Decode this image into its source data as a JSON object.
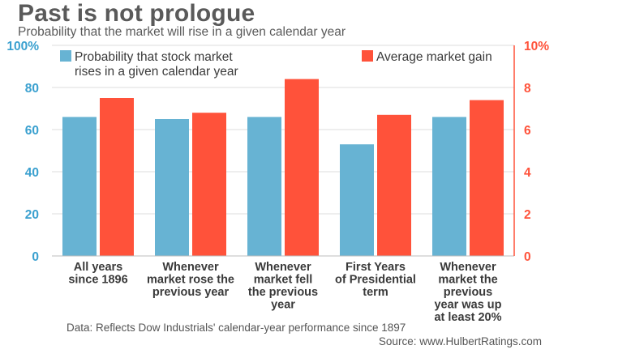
{
  "title": "Past is not prologue",
  "subtitle": "Probability that the market will rise in a given calendar year",
  "note": "Data: Reflects Dow Industrials' calendar-year performance since 1897",
  "source": "Source: www.HulbertRatings.com",
  "colors": {
    "probability": "#67b3d3",
    "gain": "#ff523a",
    "left_axis": "#3aa0cf",
    "right_axis": "#ff523a",
    "text": "#3a3a3a",
    "grid": "#dcdcdc"
  },
  "chart_data": {
    "type": "bar",
    "categories": [
      [
        "All years",
        "since 1896"
      ],
      [
        "Whenever",
        "market rose the",
        "previous year"
      ],
      [
        "Whenever",
        "market fell",
        "the previous",
        "year"
      ],
      [
        "First Years",
        "of Presidential",
        "term"
      ],
      [
        "Whenever",
        "market the",
        "previous",
        "year was up",
        "at least 20%"
      ]
    ],
    "series": [
      {
        "name": "Probability that stock market rises in a given calendar year",
        "legend_lines": [
          "Probability that stock market",
          "rises in a given calendar year"
        ],
        "axis": "left",
        "values": [
          66,
          65,
          66,
          53,
          66
        ]
      },
      {
        "name": "Average market gain",
        "legend_lines": [
          "Average market gain"
        ],
        "axis": "right",
        "values": [
          7.5,
          6.8,
          8.4,
          6.7,
          7.4
        ]
      }
    ],
    "left_axis": {
      "min": 0,
      "max": 100,
      "ticks": [
        "0",
        "20",
        "40",
        "60",
        "80",
        "100%"
      ]
    },
    "right_axis": {
      "min": 0,
      "max": 10,
      "ticks": [
        "0",
        "2",
        "4",
        "6",
        "8",
        "10%"
      ]
    },
    "grid": true,
    "legend_placement": "top"
  }
}
